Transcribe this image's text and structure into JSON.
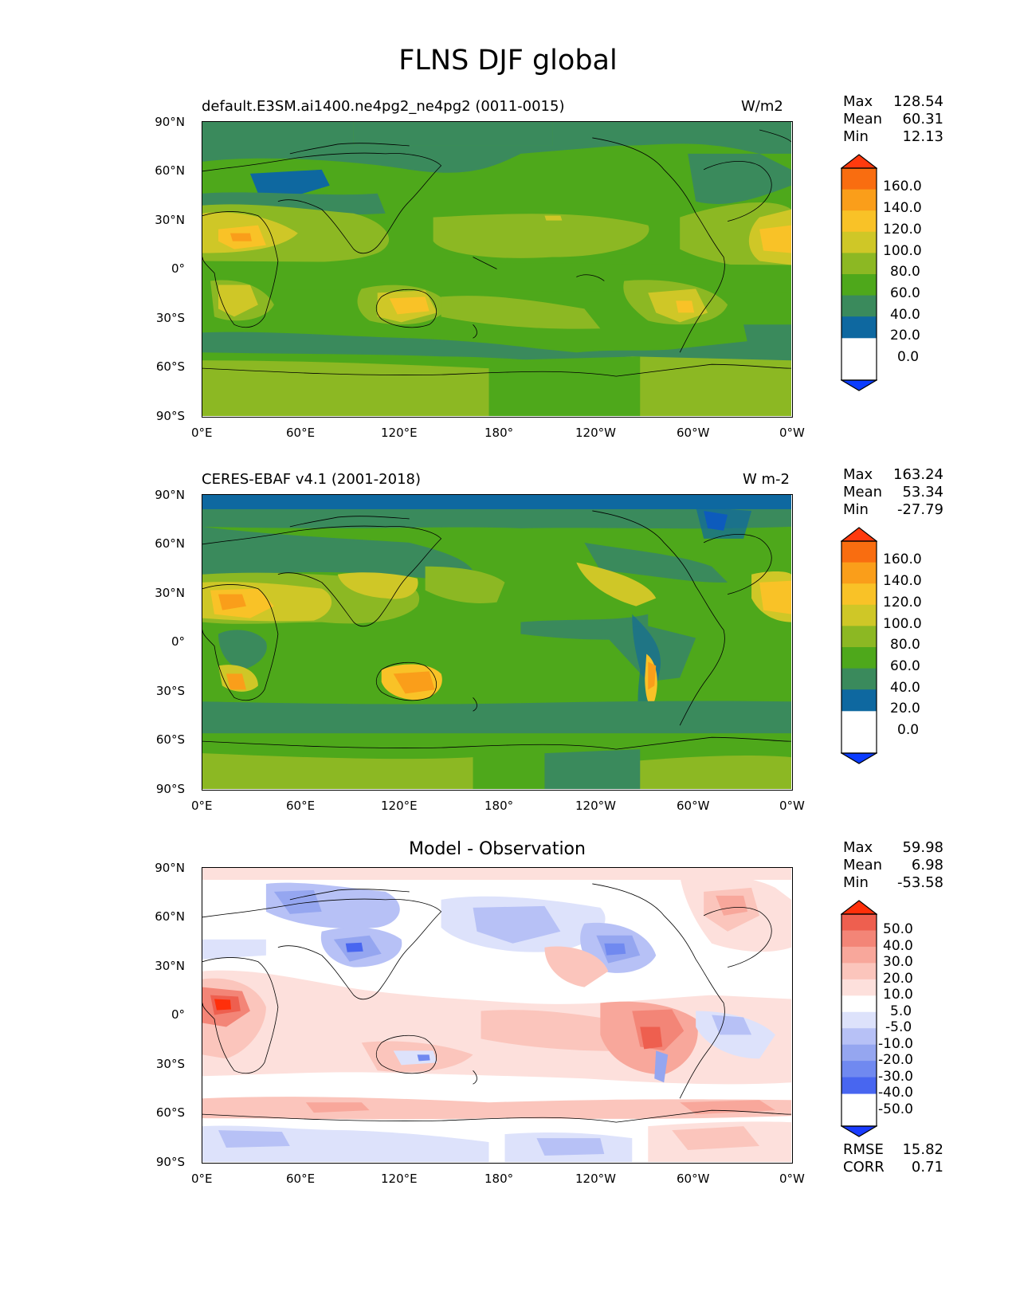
{
  "figure_title": "FLNS DJF global",
  "lat_ticks": [
    "90°N",
    "60°N",
    "30°N",
    "0°",
    "30°S",
    "60°S",
    "90°S"
  ],
  "lon_ticks": [
    "0°E",
    "60°E",
    "120°E",
    "180°",
    "120°W",
    "60°W",
    "0°W"
  ],
  "panels": [
    {
      "left_title": "default.E3SM.ai1400.ne4pg2_ne4pg2 (0011-0015)",
      "right_title": "W/m2",
      "stats": [
        {
          "label": "Max",
          "value": "128.54"
        },
        {
          "label": "Mean",
          "value": "60.31"
        },
        {
          "label": "Min",
          "value": "12.13"
        }
      ],
      "colorbar_labels": [
        "160.0",
        "140.0",
        "120.0",
        "100.0",
        "80.0",
        "60.0",
        "40.0",
        "20.0",
        "0.0"
      ]
    },
    {
      "left_title": "CERES-EBAF v4.1 (2001-2018)",
      "right_title": "W m-2",
      "stats": [
        {
          "label": "Max",
          "value": "163.24"
        },
        {
          "label": "Mean",
          "value": "53.34"
        },
        {
          "label": "Min",
          "value": "-27.79"
        }
      ],
      "colorbar_labels": [
        "160.0",
        "140.0",
        "120.0",
        "100.0",
        "80.0",
        "60.0",
        "40.0",
        "20.0",
        "0.0"
      ]
    },
    {
      "center_title": "Model - Observation",
      "stats": [
        {
          "label": "Max",
          "value": "59.98"
        },
        {
          "label": "Mean",
          "value": "6.98"
        },
        {
          "label": "Min",
          "value": "-53.58"
        }
      ],
      "colorbar_labels": [
        "50.0",
        "40.0",
        "30.0",
        "20.0",
        "10.0",
        "5.0",
        "-5.0",
        "-10.0",
        "-20.0",
        "-30.0",
        "-40.0",
        "-50.0"
      ],
      "bottom_stats": [
        {
          "label": "RMSE",
          "value": "15.82"
        },
        {
          "label": "CORR",
          "value": "0.71"
        }
      ]
    }
  ],
  "colormaps": {
    "field": [
      "#0b3cff",
      "#0e68a0",
      "#3a8a5c",
      "#4ea81b",
      "#8cb823",
      "#cfc727",
      "#f9c227",
      "#fa9e1a",
      "#f96d10",
      "#ff3a0e"
    ],
    "diff": [
      "#1a3cff",
      "#4866f0",
      "#7089f0",
      "#95a6f0",
      "#b7c1f6",
      "#dde2fb",
      "#ffffff",
      "#fde0dc",
      "#fbc5bc",
      "#f8a79b",
      "#f38577",
      "#ee5f4f",
      "#ff2f0a"
    ]
  }
}
